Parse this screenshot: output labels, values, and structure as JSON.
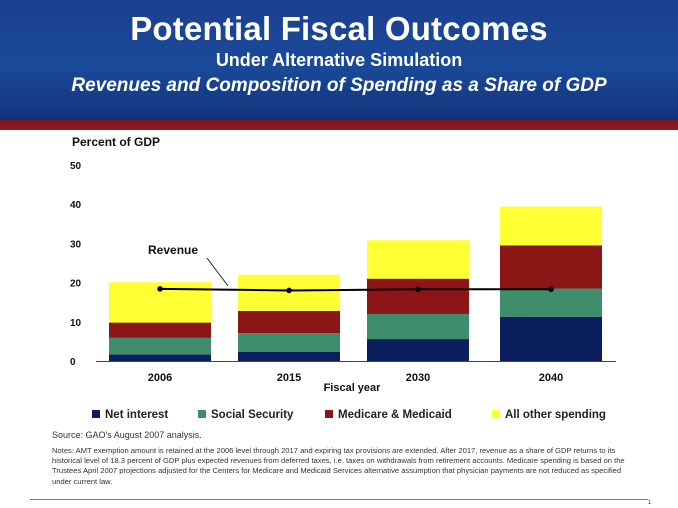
{
  "header": {
    "title": "Potential Fiscal Outcomes",
    "subtitle": "Under Alternative Simulation",
    "subtitle2": "Revenues and Composition of Spending as a Share of GDP"
  },
  "colors": {
    "banner": "#1a4a9a",
    "banner_rule": "#8e1b27",
    "net_interest": "#0b1f5e",
    "social_security": "#3e8e6e",
    "medicare_medicaid": "#8c1515",
    "all_other_spending": "#ffff33",
    "revenue_line": "#000000"
  },
  "chart_data": {
    "type": "bar",
    "stacked": true,
    "categories": [
      "2006",
      "2015",
      "2030",
      "2040"
    ],
    "ylabel": "Percent of GDP",
    "xlabel": "Fiscal year",
    "ylim": [
      0,
      50
    ],
    "yticks": [
      0,
      10,
      20,
      30,
      40,
      50
    ],
    "grid": false,
    "legend_position": "bottom",
    "series": [
      {
        "name": "Net interest",
        "values": [
          1.7,
          2.3,
          5.6,
          11.3
        ]
      },
      {
        "name": "Social Security",
        "values": [
          4.2,
          4.8,
          6.4,
          7.2
        ]
      },
      {
        "name": "Medicare & Medicaid",
        "values": [
          3.9,
          5.7,
          9.0,
          11.0
        ]
      },
      {
        "name": "All other spending",
        "values": [
          10.3,
          9.2,
          9.8,
          9.9
        ]
      }
    ],
    "revenue": {
      "label": "Revenue",
      "values": [
        18.4,
        18.0,
        18.3,
        18.3
      ]
    }
  },
  "source": "Source:  GAO's August 2007 analysis.",
  "notes": "Notes: AMT exemption amount is retained at the 2006 level through 2017 and expiring tax provisions are extended.  After 2017, revenue as a share of GDP returns to its historical level of 18.3 percent of GDP plus expected revenues from deferred taxes, i.e. taxes on withdrawals from retirement accounts. Medicare spending is based on the Trustees April 2007 projections adjusted for the Centers for Medicare and Medicaid Services alternative assumption that physician payments are not reduced as specified under current law.",
  "page_number": "1"
}
